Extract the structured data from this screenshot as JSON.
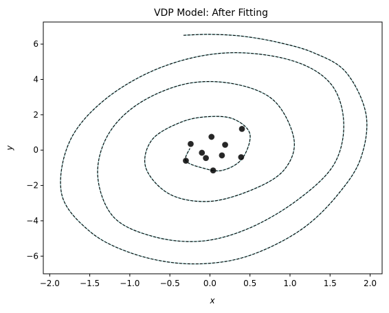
{
  "chart_data": {
    "type": "line",
    "title": "VDP Model: After Fitting",
    "xlabel": "x",
    "ylabel": "y",
    "xlim": [
      -2.08,
      2.15
    ],
    "ylim": [
      -7.0,
      7.25
    ],
    "xticks": [
      -2.0,
      -1.5,
      -1.0,
      -0.5,
      0.0,
      0.5,
      1.0,
      1.5,
      2.0
    ],
    "xtick_labels": [
      "−2.0",
      "−1.5",
      "−1.0",
      "−0.5",
      "0.0",
      "0.5",
      "1.0",
      "1.5",
      "2.0"
    ],
    "yticks": [
      -6,
      -4,
      -2,
      0,
      2,
      4,
      6
    ],
    "ytick_labels": [
      "−6",
      "−4",
      "−2",
      "0",
      "2",
      "4",
      "6"
    ],
    "grid": false,
    "legend": "none",
    "colors": {
      "true_line": "#a9d3d3",
      "fit_line": "#000000",
      "points": "#000000"
    },
    "series": [
      {
        "style": "dashed",
        "x": [
          -0.33,
          0.0,
          0.4,
          0.85,
          1.3,
          1.7,
          1.95,
          1.88,
          1.6,
          1.2,
          0.7,
          0.2,
          -0.4,
          -1.0,
          -1.5,
          -1.85,
          -1.75,
          -1.3,
          -0.6,
          0.2,
          1.0,
          1.5,
          1.67,
          1.55,
          1.1,
          0.5,
          -0.1,
          -0.7,
          -1.2,
          -1.4,
          -1.28,
          -0.9,
          -0.3,
          0.3,
          0.8,
          1.05,
          0.93,
          0.55,
          0.0,
          -0.5,
          -0.8,
          -0.72,
          -0.35,
          0.0,
          0.3,
          0.5,
          0.4,
          0.15,
          -0.1,
          -0.3,
          -0.25
        ],
        "y": [
          6.5,
          6.55,
          6.45,
          6.1,
          5.5,
          4.4,
          2.0,
          -0.5,
          -2.5,
          -4.3,
          -5.6,
          -6.3,
          -6.4,
          -5.8,
          -4.6,
          -2.5,
          0.5,
          2.9,
          4.7,
          5.5,
          5.1,
          3.8,
          1.6,
          -0.8,
          -2.8,
          -4.4,
          -5.15,
          -4.9,
          -3.8,
          -1.5,
          0.8,
          2.6,
          3.75,
          3.75,
          2.8,
          0.6,
          -1.1,
          -2.2,
          -2.9,
          -2.5,
          -1.0,
          0.6,
          1.6,
          1.9,
          1.75,
          0.9,
          -0.5,
          -1.15,
          -1.0,
          -0.6,
          0.1
        ]
      }
    ],
    "points": {
      "x": [
        0.4,
        0.02,
        -0.24,
        0.19,
        -0.1,
        0.15,
        -0.05,
        0.39,
        -0.3,
        0.04
      ],
      "y": [
        1.2,
        0.75,
        0.35,
        0.3,
        -0.15,
        -0.3,
        -0.45,
        -0.4,
        -0.6,
        -1.15
      ]
    }
  }
}
